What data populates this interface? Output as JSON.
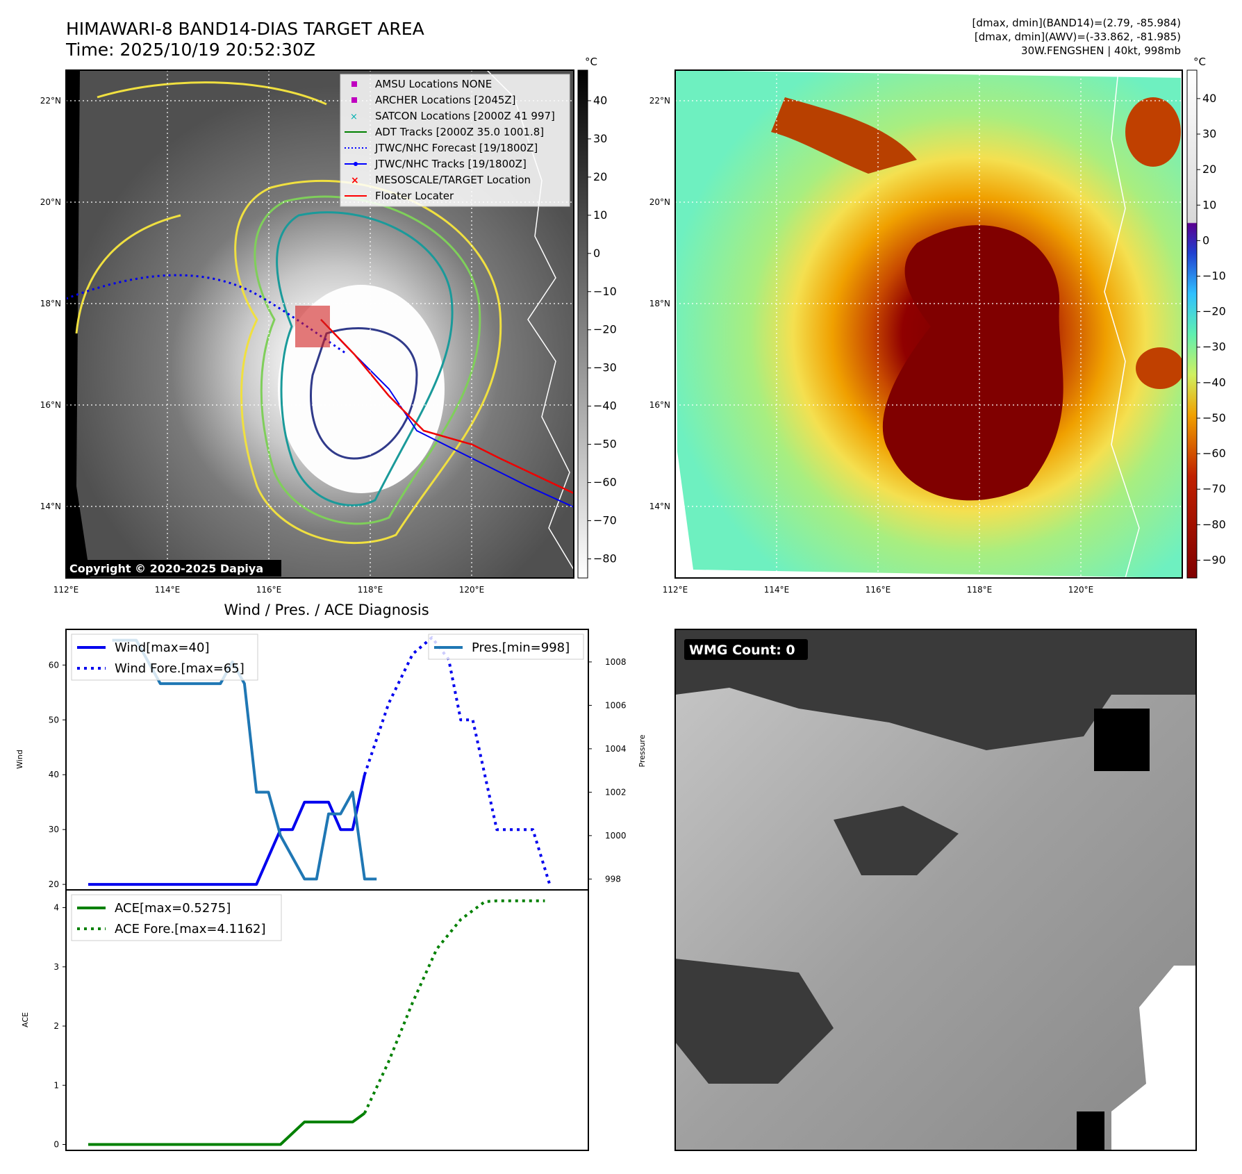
{
  "header": {
    "title": "HIMAWARI-8 BAND14-DIAS TARGET AREA",
    "time": "Time: 2025/10/19 20:52:30Z",
    "stats_band14": "[dmax, dmin](BAND14)=(2.79, -85.984)",
    "stats_awv": "[dmax, dmin](AWV)=(-33.862, -81.985)",
    "storm_info": "30W.FENGSHEN | 40kt, 998mb"
  },
  "map_axes": {
    "lon_labels": [
      "112°E",
      "114°E",
      "116°E",
      "118°E",
      "120°E"
    ],
    "lat_labels": [
      "22°N",
      "20°N",
      "18°N",
      "16°N",
      "14°N"
    ],
    "copyright": "Copyright © 2020-2025 Dapiya"
  },
  "colorbar_gray": {
    "unit": "°C",
    "ticks": [
      "40",
      "30",
      "20",
      "10",
      "0",
      "−10",
      "−20",
      "−30",
      "−40",
      "−50",
      "−60",
      "−70",
      "−80"
    ]
  },
  "colorbar_color": {
    "unit": "°C",
    "ticks": [
      "40",
      "30",
      "20",
      "10",
      "0",
      "−10",
      "−20",
      "−30",
      "−40",
      "−50",
      "−60",
      "−70",
      "−80",
      "−90"
    ]
  },
  "legend": [
    {
      "label": "AMSU Locations NONE",
      "marker": "square",
      "color": "#c000c0"
    },
    {
      "label": "ARCHER Locations [2045Z]",
      "marker": "square",
      "color": "#c000c0"
    },
    {
      "label": "SATCON Locations [2000Z 41 997]",
      "marker": "x",
      "color": "#00b0b0"
    },
    {
      "label": "ADT Tracks [2000Z 35.0 1001.8]",
      "marker": "line",
      "color": "#008000"
    },
    {
      "label": "JTWC/NHC Forecast [19/1800Z]",
      "marker": "dotted",
      "color": "#0000ff"
    },
    {
      "label": "JTWC/NHC Tracks [19/1800Z]",
      "marker": "line-dot",
      "color": "#0000ff"
    },
    {
      "label": "MESOSCALE/TARGET Location",
      "marker": "x",
      "color": "#ff0000"
    },
    {
      "label": "Floater Locater",
      "marker": "line",
      "color": "#ff0000"
    }
  ],
  "diagnosis": {
    "title": "Wind / Pres. / ACE Diagnosis",
    "wmg_label": "WMG Count: 0"
  },
  "chart_data": [
    {
      "type": "line",
      "title": "Wind / Pres. / ACE Diagnosis",
      "ylabel": "Wind",
      "ylim": [
        19,
        66.5
      ],
      "yticks": [
        20,
        30,
        40,
        50,
        60
      ],
      "series": [
        {
          "name": "Wind[max=40]",
          "color": "#0000ee",
          "style": "solid",
          "x": [
            0,
            1,
            2,
            3,
            4,
            5,
            6,
            7,
            7.5,
            8,
            8.5,
            9,
            9.5,
            10,
            10.5,
            11,
            11.5
          ],
          "values": [
            20,
            20,
            20,
            20,
            20,
            20,
            20,
            20,
            25,
            30,
            30,
            35,
            35,
            35,
            30,
            30,
            40
          ]
        },
        {
          "name": "Wind Fore.[max=65]",
          "color": "#0000ee",
          "style": "dotted",
          "x": [
            11.5,
            12.5,
            13.5,
            14.3,
            15,
            15.5,
            16,
            17,
            18,
            18.5,
            19.2
          ],
          "values": [
            40,
            53,
            62,
            65,
            61,
            50,
            50,
            30,
            30,
            30,
            20
          ]
        }
      ],
      "legend_labels": [
        "Wind[max=40]",
        "Wind Fore.[max=65]"
      ]
    },
    {
      "type": "line",
      "ylabel": "Pressure",
      "ylim": [
        997.5,
        1009.5
      ],
      "yticks": [
        998,
        1000,
        1002,
        1004,
        1006,
        1008
      ],
      "series": [
        {
          "name": "Pres.[min=998]",
          "color": "#1f77b4",
          "style": "solid",
          "x": [
            1,
            2,
            3,
            4,
            5,
            5.5,
            6,
            6.5,
            7,
            7.5,
            8,
            9,
            9.5,
            10,
            10.5,
            11,
            11.5,
            12
          ],
          "values": [
            1009,
            1009,
            1007,
            1007,
            1007,
            1007,
            1008,
            1007,
            1002,
            1002,
            1000,
            998,
            998,
            1001,
            1001,
            1002,
            998,
            998
          ]
        }
      ],
      "legend_labels": [
        "Pres.[min=998]"
      ]
    },
    {
      "type": "line",
      "ylabel": "ACE",
      "ylim": [
        -0.1,
        4.3
      ],
      "yticks": [
        0,
        1,
        2,
        3,
        4
      ],
      "series": [
        {
          "name": "ACE[max=0.5275]",
          "color": "#008000",
          "style": "solid",
          "x": [
            0,
            1,
            2,
            3,
            4,
            5,
            6,
            7,
            8,
            9,
            10,
            11,
            11.5
          ],
          "values": [
            0,
            0,
            0,
            0,
            0,
            0,
            0,
            0,
            0,
            0.38,
            0.38,
            0.38,
            0.5275
          ]
        },
        {
          "name": "ACE Fore.[max=4.1162]",
          "color": "#008000",
          "style": "dotted",
          "x": [
            11.5,
            12.5,
            13.5,
            14.5,
            15.5,
            16.5,
            17,
            18,
            19
          ],
          "values": [
            0.5275,
            1.4,
            2.4,
            3.3,
            3.8,
            4.1,
            4.1162,
            4.1162,
            4.1162
          ]
        }
      ],
      "legend_labels": [
        "ACE[max=0.5275]",
        "ACE Fore.[max=4.1162]"
      ]
    }
  ]
}
